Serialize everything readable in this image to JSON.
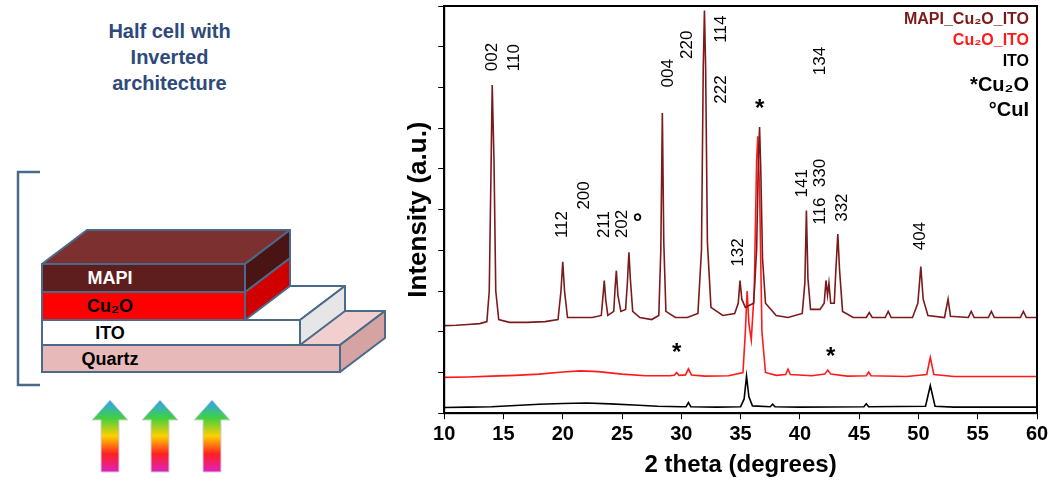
{
  "diagram": {
    "title": "Half cell with Inverted architecture",
    "layers": [
      "MAPI",
      "Cu₂O",
      "ITO",
      "Quartz"
    ]
  },
  "chart_data": {
    "type": "line",
    "x_label": "2 theta (degrees)",
    "y_label": "Intensity (a.u.)",
    "xlim": [
      10,
      60
    ],
    "xticks": [
      10,
      15,
      20,
      25,
      30,
      35,
      40,
      45,
      50,
      55,
      60
    ],
    "ylim": [
      0,
      100
    ],
    "yticks": [
      0,
      10,
      20,
      30,
      40,
      50,
      60,
      70,
      80,
      90,
      100
    ],
    "tick_labels": "x",
    "grid": false,
    "legend": "top-right",
    "legend_notes": [
      "*Cu₂O",
      "°CuI"
    ],
    "series": [
      {
        "name": "MAPI_Cu₂O_ITO",
        "color": "#7b1a1a",
        "x": [
          10,
          11,
          12,
          13,
          13.6,
          13.8,
          13.95,
          14.05,
          14.2,
          14.35,
          14.6,
          15.5,
          17,
          18.5,
          19.6,
          19.85,
          20.0,
          20.15,
          20.4,
          21.5,
          22.5,
          23.25,
          23.4,
          23.5,
          23.62,
          23.8,
          24.3,
          24.42,
          24.52,
          24.65,
          24.9,
          25.3,
          25.45,
          25.58,
          25.7,
          25.9,
          26.5,
          27.5,
          28.1,
          28.27,
          28.4,
          28.52,
          28.7,
          29.5,
          30.5,
          31.4,
          31.7,
          31.85,
          31.95,
          32.05,
          32.2,
          32.5,
          33.5,
          34.5,
          34.8,
          34.95,
          35.1,
          35.4,
          36.1,
          36.35,
          36.5,
          36.6,
          36.7,
          36.85,
          37.1,
          38,
          39,
          40.2,
          40.42,
          40.55,
          40.68,
          40.9,
          41.7,
          42.05,
          42.2,
          42.33,
          42.45,
          42.6,
          42.9,
          43.05,
          43.2,
          43.35,
          43.6,
          44.5,
          45.6,
          45.85,
          46.1,
          47.2,
          47.45,
          47.7,
          49.5,
          49.95,
          50.2,
          50.4,
          50.8,
          52.2,
          52.5,
          52.7,
          54.2,
          54.45,
          54.7,
          55.9,
          56.15,
          56.4,
          58.6,
          58.85,
          59.1,
          60
        ],
        "values": [
          21.5,
          21.6,
          21.8,
          22,
          22.5,
          30,
          60,
          80.6,
          62,
          30,
          23,
          22.3,
          22.3,
          22.5,
          23,
          30,
          37.2,
          30,
          23.5,
          23.5,
          23.5,
          24,
          29,
          32.6,
          28,
          24,
          25,
          31,
          35,
          29,
          25,
          25.5,
          32,
          39.5,
          33,
          25,
          23.5,
          23,
          24,
          40,
          73.7,
          42,
          25,
          23.5,
          23.5,
          24.5,
          40,
          85,
          98.9,
          85,
          42,
          26,
          24,
          24.5,
          27,
          32.6,
          28,
          26,
          27,
          40,
          62,
          70.3,
          60,
          38,
          27,
          24,
          23.5,
          24.5,
          32,
          49.8,
          33,
          25.5,
          25.5,
          27,
          32.6,
          29,
          32,
          27,
          27,
          36,
          44,
          35,
          25,
          23.5,
          23.5,
          24.7,
          23.5,
          23.5,
          25,
          23.5,
          23.5,
          27,
          36,
          28,
          24,
          23.5,
          28,
          23.8,
          23.5,
          25,
          23.5,
          23.5,
          25,
          23.5,
          23.5,
          25,
          23.5,
          23.5
        ]
      },
      {
        "name": "Cu₂O_ITO",
        "color": "#ff1a1a",
        "x": [
          10,
          12,
          14,
          16,
          18,
          20,
          21.5,
          23,
          25,
          27,
          29,
          29.4,
          29.6,
          29.8,
          30.35,
          30.6,
          30.85,
          32,
          34,
          35.2,
          35.4,
          35.55,
          35.7,
          35.9,
          36.15,
          36.35,
          36.45,
          36.6,
          36.8,
          37.1,
          38,
          38.8,
          39,
          39.2,
          41,
          42.1,
          42.35,
          42.6,
          44,
          45.6,
          45.8,
          46,
          49,
          50.7,
          51,
          51.3,
          53,
          55,
          57,
          60
        ],
        "values": [
          8.8,
          8.9,
          9.1,
          9.3,
          9.6,
          10.1,
          10.4,
          10.2,
          9.6,
          9.2,
          9.2,
          9.3,
          10.0,
          9.3,
          9.4,
          10.9,
          9.4,
          9.1,
          9.2,
          10,
          20,
          30,
          22,
          18,
          30,
          62,
          68,
          55,
          20,
          10,
          9.3,
          9.5,
          10.8,
          9.5,
          9.2,
          9.6,
          10.6,
          9.6,
          9.1,
          9.2,
          10.1,
          9.2,
          9.0,
          9.5,
          13.7,
          9.5,
          9.0,
          9.0,
          9.0,
          9.0
        ]
      },
      {
        "name": "ITO",
        "color": "#000000",
        "x": [
          10,
          12,
          14,
          16,
          18,
          20,
          22,
          24,
          26,
          28,
          30,
          30.4,
          30.6,
          30.8,
          33,
          35,
          35.3,
          35.5,
          35.7,
          36,
          37.5,
          37.7,
          37.9,
          40,
          45.4,
          45.6,
          45.8,
          50.6,
          51,
          51.4,
          53,
          55,
          60
        ],
        "values": [
          1.4,
          1.5,
          1.6,
          1.9,
          2.2,
          2.4,
          2.5,
          2.3,
          2.0,
          1.7,
          1.6,
          1.6,
          2.6,
          1.6,
          1.5,
          1.6,
          3.5,
          9.1,
          4,
          1.8,
          1.6,
          2.2,
          1.6,
          1.5,
          1.6,
          2.3,
          1.6,
          1.7,
          6.8,
          1.7,
          1.5,
          1.5,
          1.5
        ]
      }
    ],
    "annotations": [
      {
        "text": "002",
        "x": 14.1,
        "y": 84
      },
      {
        "text": "110",
        "x": 15.9,
        "y": 84
      },
      {
        "text": "112",
        "x": 20.0,
        "y": 43
      },
      {
        "text": "200",
        "x": 21.8,
        "y": 50
      },
      {
        "text": "211",
        "x": 23.5,
        "y": 43
      },
      {
        "text": "202",
        "x": 25.0,
        "y": 43
      },
      {
        "text": "°",
        "x": 26.3,
        "y": 45
      },
      {
        "text": "004",
        "x": 28.9,
        "y": 80
      },
      {
        "text": "220",
        "x": 30.5,
        "y": 87
      },
      {
        "text": "114",
        "x": 33.4,
        "y": 91
      },
      {
        "text": "222",
        "x": 33.4,
        "y": 76
      },
      {
        "text": "132",
        "x": 34.8,
        "y": 36
      },
      {
        "text": "*",
        "x": 36.6,
        "y": 73
      },
      {
        "text": "134",
        "x": 41.7,
        "y": 83
      },
      {
        "text": "141",
        "x": 40.2,
        "y": 53
      },
      {
        "text": "330",
        "x": 41.7,
        "y": 55.5
      },
      {
        "text": "116",
        "x": 41.7,
        "y": 46.3
      },
      {
        "text": "332",
        "x": 43.6,
        "y": 47
      },
      {
        "text": "404",
        "x": 50.2,
        "y": 40
      },
      {
        "text": "*",
        "x": 29.6,
        "y": 13
      },
      {
        "text": "*",
        "x": 42.6,
        "y": 12
      }
    ]
  }
}
